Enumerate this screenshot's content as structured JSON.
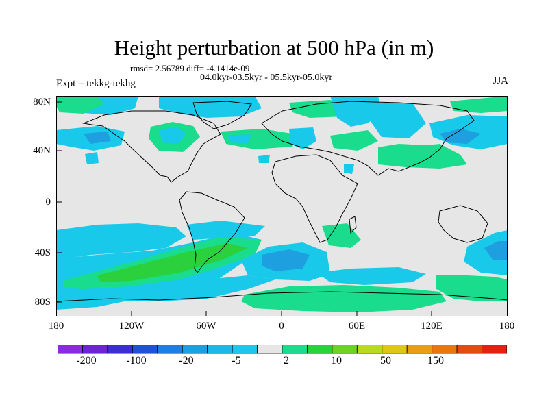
{
  "title": "Height perturbation at 500 hPa (in m)",
  "stats": "rmsd= 2.56789 diff= -4.1414e-09",
  "period": "04.0kyr-03.5kyr - 05.5kyr-05.0kyr",
  "experiment": "Expt = tekkg-tekhg",
  "season": "JJA",
  "lat_labels": [
    "80N",
    "40N",
    "0",
    "40S",
    "80S"
  ],
  "lon_labels": [
    "180",
    "120W",
    "60W",
    "0",
    "60E",
    "120E",
    "180"
  ],
  "colorbar": {
    "labels": [
      "-200",
      "-100",
      "-20",
      "-5",
      "2",
      "10",
      "50",
      "150"
    ],
    "colors": [
      "#8a2be2",
      "#6b24d6",
      "#3b2ed6",
      "#1f52d8",
      "#1f7fe0",
      "#1ea0e0",
      "#19b9e6",
      "#19c9ea",
      "#e6e6e6",
      "#19dd8c",
      "#2bd13c",
      "#6ed12a",
      "#b8dc1a",
      "#dcc80f",
      "#e6a00f",
      "#e67814",
      "#e64a14",
      "#e61e14"
    ]
  },
  "palette": {
    "neutral": "#e6e6e6",
    "light_blue": "#19c9ea",
    "mid_blue": "#1ea0e0",
    "teal_green": "#19dd8c",
    "green": "#2bd13c"
  }
}
